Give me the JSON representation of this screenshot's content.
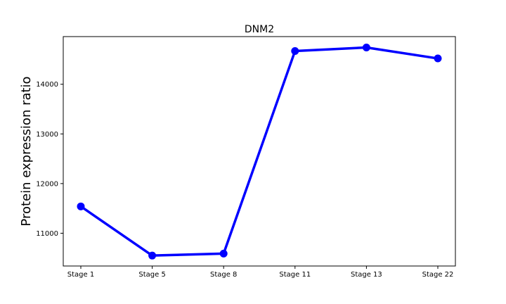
{
  "chart_data": {
    "type": "line",
    "title": "DNM2",
    "xlabel": "",
    "ylabel": "Protein expression ratio",
    "categories": [
      "Stage 1",
      "Stage 5",
      "Stage 8",
      "Stage 11",
      "Stage 13",
      "Stage 22"
    ],
    "series": [
      {
        "values": [
          11540,
          10550,
          10590,
          14670,
          14740,
          14520
        ],
        "color": "#0000ff"
      }
    ],
    "yticks": [
      11000,
      12000,
      13000,
      14000
    ],
    "ylim": [
      10340,
      14960
    ],
    "grid": false,
    "legend": "none"
  }
}
